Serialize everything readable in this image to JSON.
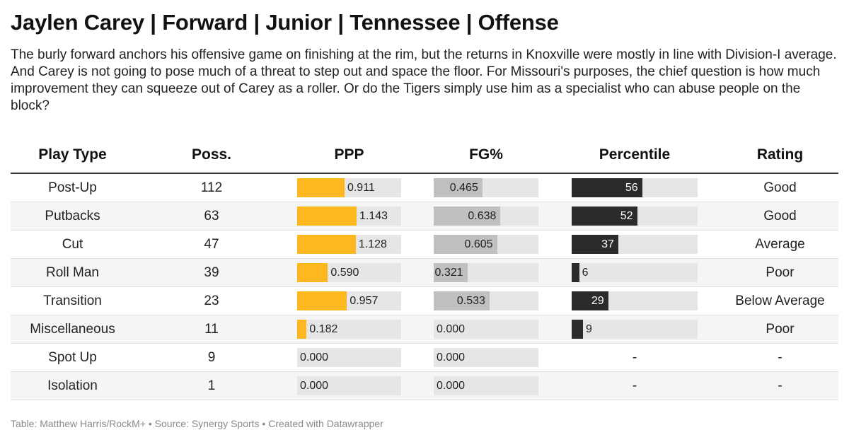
{
  "title": "Jaylen Carey | Forward | Junior | Tennessee | Offense",
  "description": "The burly forward anchors his offensive game on finishing at the rim, but the returns in Knoxville were mostly in line with Division-I average. And Carey is not going to pose much of a threat to step out and space the floor. For Missouri's purposes, the chief question is how much improvement they can squeeze out of Carey as a roller. Or do the Tigers simply use him as a specialist who can abuse people on the block?",
  "footer": "Table: Matthew Harris/RockM+ • Source: Synergy Sports • Created with Datawrapper",
  "colors": {
    "ppp": "#fdb71f",
    "fg": "#c0c0c0",
    "percentile": "#2b2b2b",
    "track": "#e6e6e6"
  },
  "chart_data": {
    "type": "table",
    "columns": [
      "Play Type",
      "Poss.",
      "PPP",
      "FG%",
      "Percentile",
      "Rating"
    ],
    "rows": [
      {
        "play_type": "Post-Up",
        "poss": "112",
        "ppp": 0.911,
        "ppp_label": "0.911",
        "fg": 0.465,
        "fg_label": "0.465",
        "percentile": 56,
        "percentile_label": "56",
        "rating": "Good"
      },
      {
        "play_type": "Putbacks",
        "poss": "63",
        "ppp": 1.143,
        "ppp_label": "1.143",
        "fg": 0.638,
        "fg_label": "0.638",
        "percentile": 52,
        "percentile_label": "52",
        "rating": "Good"
      },
      {
        "play_type": "Cut",
        "poss": "47",
        "ppp": 1.128,
        "ppp_label": "1.128",
        "fg": 0.605,
        "fg_label": "0.605",
        "percentile": 37,
        "percentile_label": "37",
        "rating": "Average"
      },
      {
        "play_type": "Roll Man",
        "poss": "39",
        "ppp": 0.59,
        "ppp_label": "0.590",
        "fg": 0.321,
        "fg_label": "0.321",
        "percentile": 6,
        "percentile_label": "6",
        "rating": "Poor"
      },
      {
        "play_type": "Transition",
        "poss": "23",
        "ppp": 0.957,
        "ppp_label": "0.957",
        "fg": 0.533,
        "fg_label": "0.533",
        "percentile": 29,
        "percentile_label": "29",
        "rating": "Below Average"
      },
      {
        "play_type": "Miscellaneous",
        "poss": "11",
        "ppp": 0.182,
        "ppp_label": "0.182",
        "fg": 0.0,
        "fg_label": "0.000",
        "percentile": 9,
        "percentile_label": "9",
        "rating": "Poor"
      },
      {
        "play_type": "Spot Up",
        "poss": "9",
        "ppp": 0.0,
        "ppp_label": "0.000",
        "fg": 0.0,
        "fg_label": "0.000",
        "percentile": null,
        "percentile_label": "-",
        "rating": "-"
      },
      {
        "play_type": "Isolation",
        "poss": "1",
        "ppp": 0.0,
        "ppp_label": "0.000",
        "fg": 0.0,
        "fg_label": "0.000",
        "percentile": null,
        "percentile_label": "-",
        "rating": "-"
      }
    ],
    "ppp_max": 2.0,
    "fg_max": 1.0,
    "percentile_max": 100
  }
}
